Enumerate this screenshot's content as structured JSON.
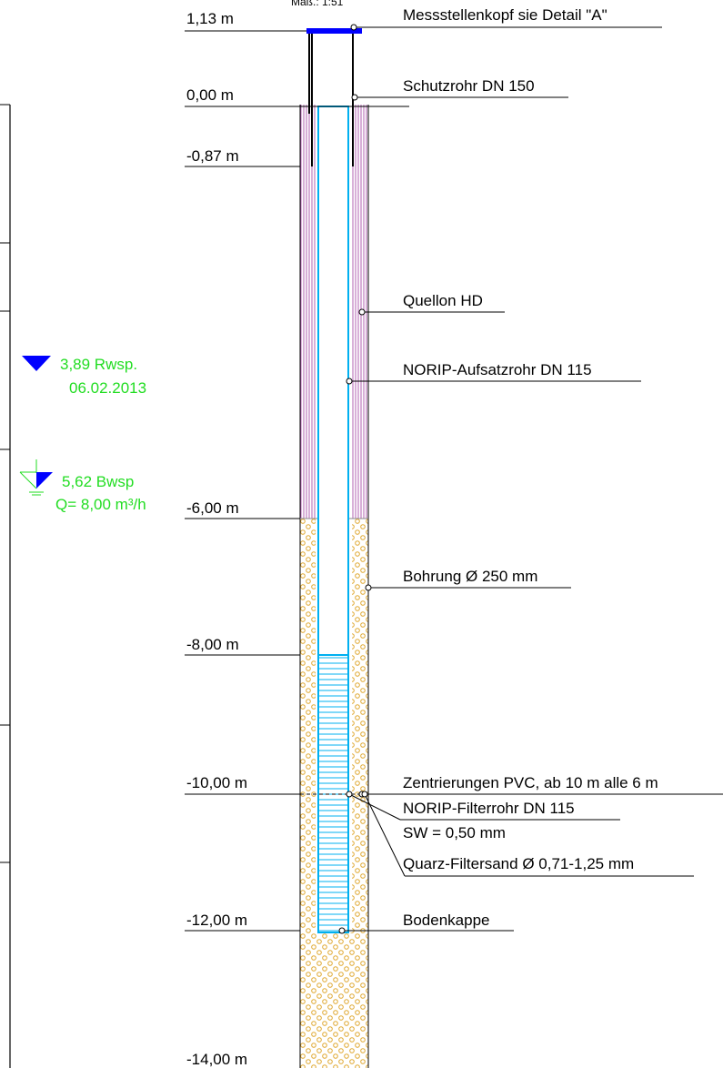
{
  "scale_note": "Maß.: 1:51",
  "depth_levels": [
    {
      "id": "top",
      "text": "1,13  m"
    },
    {
      "id": "ground",
      "text": "0,00  m"
    },
    {
      "id": "protect_end",
      "text": "-0,87  m"
    },
    {
      "id": "seal_end",
      "text": "-6,00  m"
    },
    {
      "id": "filter_start",
      "text": "-8,00  m"
    },
    {
      "id": "centering",
      "text": "-10,00  m"
    },
    {
      "id": "bottom_cap",
      "text": "-12,00  m"
    },
    {
      "id": "bore_end",
      "text": "-14,00  m"
    }
  ],
  "components": [
    {
      "id": "head",
      "text": "Messstellenkopf sie Detail \"A\""
    },
    {
      "id": "protective_pipe",
      "text": "Schutzrohr DN 150"
    },
    {
      "id": "seal",
      "text": "Quellon HD"
    },
    {
      "id": "riser",
      "text": "NORIP-Aufsatzrohr DN 115"
    },
    {
      "id": "borehole",
      "text": "Bohrung Ø 250 mm"
    },
    {
      "id": "centralizers",
      "text": "Zentrierungen PVC, ab 10 m alle 6 m"
    },
    {
      "id": "filter_pipe",
      "text": "NORIP-Filterrohr DN 115"
    },
    {
      "id": "slot_width",
      "text": "SW = 0,50 mm"
    },
    {
      "id": "filter_sand",
      "text": "Quarz-Filtersand Ø 0,71-1,25 mm"
    },
    {
      "id": "end_cap",
      "text": "Bodenkappe"
    }
  ],
  "water_levels": {
    "rest": {
      "value": "3,89 Rwsp.",
      "date": "06.02.2013"
    },
    "operating": {
      "value": "5,62 Bwsp",
      "flow": "Q= 8,00 m³/h"
    }
  },
  "colors": {
    "clay_seal": "#b060b0",
    "sand": "#e0b040",
    "pipe": "#00b0f0",
    "head": "#0000ff",
    "water_marker": "#0000ff",
    "annotation": "#22dd22"
  }
}
